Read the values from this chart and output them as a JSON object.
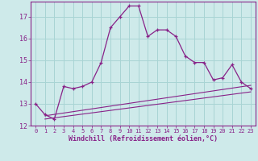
{
  "xlabel": "Windchill (Refroidissement éolien,°C)",
  "background_color": "#ceeaea",
  "grid_color": "#a8d4d4",
  "line_color": "#882288",
  "hours": [
    0,
    1,
    2,
    3,
    4,
    5,
    6,
    7,
    8,
    9,
    10,
    11,
    12,
    13,
    14,
    15,
    16,
    17,
    18,
    19,
    20,
    21,
    22,
    23
  ],
  "windchill": [
    13.0,
    12.5,
    12.3,
    13.8,
    13.7,
    13.8,
    14.0,
    14.9,
    16.5,
    17.0,
    17.5,
    17.5,
    16.1,
    16.4,
    16.4,
    16.1,
    15.2,
    14.9,
    14.9,
    14.1,
    14.2,
    14.8,
    14.0,
    13.7
  ],
  "trend1_x": [
    1,
    23
  ],
  "trend1_y": [
    12.3,
    13.55
  ],
  "trend2_x": [
    1,
    23
  ],
  "trend2_y": [
    12.45,
    13.85
  ],
  "ylim": [
    12.0,
    17.7
  ],
  "xlim": [
    -0.5,
    23.5
  ],
  "yticks": [
    12,
    13,
    14,
    15,
    16,
    17
  ],
  "xticks": [
    0,
    1,
    2,
    3,
    4,
    5,
    6,
    7,
    8,
    9,
    10,
    11,
    12,
    13,
    14,
    15,
    16,
    17,
    18,
    19,
    20,
    21,
    22,
    23
  ],
  "tick_fontsize": 5,
  "xlabel_fontsize": 6
}
